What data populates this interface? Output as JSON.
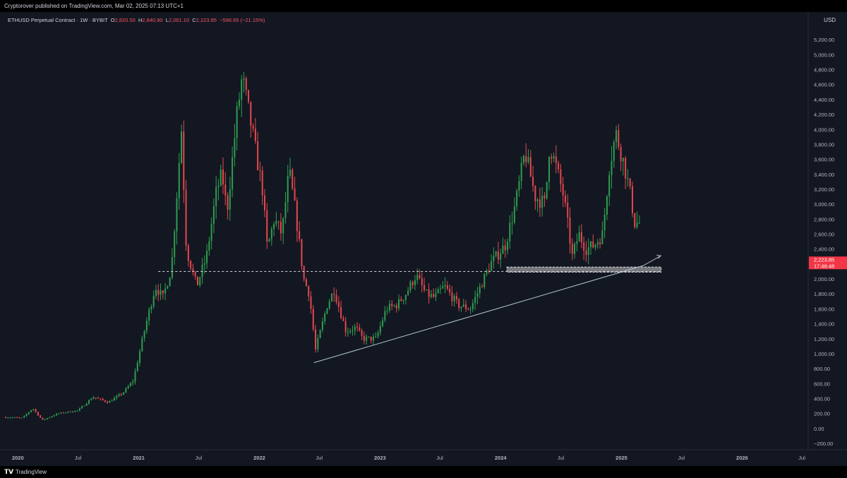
{
  "header": {
    "publish_line": "Cryptorover published on TradingView.com, Mar 02, 2025 07:13 UTC+1"
  },
  "legend": {
    "symbol": "ETHUSD Perpetual Contract · 1W · BYBIT",
    "open_label": "O",
    "open_value": "2,820.50",
    "high_label": "H",
    "high_value": "2,840.80",
    "low_label": "L",
    "low_value": "2,061.10",
    "close_label": "C",
    "close_value": "2,223.85",
    "change_value": "−596.65 (−21.15%)"
  },
  "price_axis": {
    "unit": "USD",
    "current_price_label": "2,223.85",
    "countdown_label": "17:46:48"
  },
  "footer": {
    "brand": "TradingView"
  },
  "colors": {
    "background": "#131722",
    "up": "#26a69a",
    "down": "#ef5350",
    "candle_up": "#2e9e4f",
    "candle_down": "#e5484d",
    "axis_text": "#b2b5be",
    "grid": "#1e222d"
  },
  "chart_data": {
    "type": "candlestick",
    "ylim": [
      -200,
      5400
    ],
    "y_ticks": [
      -200,
      0,
      200,
      400,
      600,
      800,
      1000,
      1200,
      1400,
      1600,
      1800,
      2000,
      2200,
      2400,
      2600,
      2800,
      3000,
      3200,
      3400,
      3600,
      3800,
      4000,
      4200,
      4400,
      4600,
      4800,
      5000,
      5200
    ],
    "y_tick_labels": [
      "−200.00",
      "0.00",
      "200.00",
      "400.00",
      "600.00",
      "800.00",
      "1,000.00",
      "1,200.00",
      "1,400.00",
      "1,600.00",
      "1,800.00",
      "2,000.00",
      "2,200.00",
      "2,400.00",
      "2,600.00",
      "2,800.00",
      "3,000.00",
      "3,200.00",
      "3,400.00",
      "3,600.00",
      "3,800.00",
      "4,000.00",
      "4,200.00",
      "4,400.00",
      "4,600.00",
      "4,800.00",
      "5,000.00",
      "5,200.00"
    ],
    "x_range": [
      "2019-11-25",
      "2026-07-20"
    ],
    "x_ticks": [
      {
        "date": "2020-01-01",
        "label": "2020",
        "bold": true
      },
      {
        "date": "2020-07-01",
        "label": "Jul",
        "bold": false
      },
      {
        "date": "2021-01-01",
        "label": "2021",
        "bold": true
      },
      {
        "date": "2021-07-01",
        "label": "Jul",
        "bold": false
      },
      {
        "date": "2022-01-01",
        "label": "2022",
        "bold": true
      },
      {
        "date": "2022-07-01",
        "label": "Jul",
        "bold": false
      },
      {
        "date": "2023-01-01",
        "label": "2023",
        "bold": true
      },
      {
        "date": "2023-07-01",
        "label": "Jul",
        "bold": false
      },
      {
        "date": "2024-01-01",
        "label": "2024",
        "bold": true
      },
      {
        "date": "2024-07-01",
        "label": "Jul",
        "bold": false
      },
      {
        "date": "2025-01-01",
        "label": "2025",
        "bold": true
      },
      {
        "date": "2025-07-01",
        "label": "Jul",
        "bold": false
      },
      {
        "date": "2026-01-01",
        "label": "2026",
        "bold": true
      },
      {
        "date": "2026-07-01",
        "label": "Jul",
        "bold": false
      }
    ],
    "price_path": [
      [
        "2019-11-25",
        150
      ],
      [
        "2020-01-15",
        140
      ],
      [
        "2020-02-15",
        270
      ],
      [
        "2020-03-15",
        110
      ],
      [
        "2020-05-01",
        200
      ],
      [
        "2020-07-01",
        240
      ],
      [
        "2020-08-15",
        420
      ],
      [
        "2020-10-01",
        350
      ],
      [
        "2020-11-15",
        480
      ],
      [
        "2020-12-15",
        640
      ],
      [
        "2021-01-20",
        1350
      ],
      [
        "2021-02-20",
        1900
      ],
      [
        "2021-03-15",
        1750
      ],
      [
        "2021-04-10",
        2150
      ],
      [
        "2021-05-10",
        4000
      ],
      [
        "2021-05-25",
        2400
      ],
      [
        "2021-06-25",
        1900
      ],
      [
        "2021-07-25",
        2300
      ],
      [
        "2021-08-25",
        3200
      ],
      [
        "2021-09-10",
        3400
      ],
      [
        "2021-09-25",
        2900
      ],
      [
        "2021-10-25",
        4200
      ],
      [
        "2021-11-10",
        4700
      ],
      [
        "2021-12-05",
        4100
      ],
      [
        "2022-01-10",
        3200
      ],
      [
        "2022-01-25",
        2400
      ],
      [
        "2022-02-15",
        2800
      ],
      [
        "2022-03-10",
        2600
      ],
      [
        "2022-04-01",
        3450
      ],
      [
        "2022-04-20",
        2900
      ],
      [
        "2022-05-15",
        2000
      ],
      [
        "2022-06-01",
        1800
      ],
      [
        "2022-06-20",
        1050
      ],
      [
        "2022-07-25",
        1650
      ],
      [
        "2022-08-15",
        1850
      ],
      [
        "2022-09-20",
        1300
      ],
      [
        "2022-10-20",
        1350
      ],
      [
        "2022-11-10",
        1200
      ],
      [
        "2022-12-20",
        1200
      ],
      [
        "2023-01-20",
        1600
      ],
      [
        "2023-02-20",
        1650
      ],
      [
        "2023-03-20",
        1800
      ],
      [
        "2023-04-20",
        2050
      ],
      [
        "2023-05-20",
        1800
      ],
      [
        "2023-06-15",
        1750
      ],
      [
        "2023-07-15",
        1900
      ],
      [
        "2023-08-25",
        1650
      ],
      [
        "2023-10-01",
        1600
      ],
      [
        "2023-11-01",
        1900
      ],
      [
        "2023-12-01",
        2200
      ],
      [
        "2024-01-15",
        2450
      ],
      [
        "2024-02-15",
        3000
      ],
      [
        "2024-03-15",
        3700
      ],
      [
        "2024-04-15",
        3100
      ],
      [
        "2024-05-15",
        3000
      ],
      [
        "2024-05-28",
        3800
      ],
      [
        "2024-06-20",
        3450
      ],
      [
        "2024-07-10",
        3100
      ],
      [
        "2024-08-05",
        2300
      ],
      [
        "2024-08-25",
        2600
      ],
      [
        "2024-09-15",
        2400
      ],
      [
        "2024-10-10",
        2450
      ],
      [
        "2024-11-05",
        2600
      ],
      [
        "2024-11-25",
        3500
      ],
      [
        "2024-12-15",
        3950
      ],
      [
        "2025-01-05",
        3600
      ],
      [
        "2025-01-25",
        3200
      ],
      [
        "2025-02-10",
        2750
      ],
      [
        "2025-02-24",
        2750
      ],
      [
        "2025-03-02",
        2224
      ]
    ],
    "annotations": {
      "support_level": 2100,
      "trendline": [
        [
          "2022-06-15",
          880
        ],
        [
          "2025-03-09",
          2180
        ]
      ],
      "arrow_end": [
        "2025-04-30",
        2310
      ],
      "highlight_box": {
        "from": "2024-01-20",
        "to": "2025-05-01",
        "low": 2090,
        "high": 2160
      }
    }
  }
}
